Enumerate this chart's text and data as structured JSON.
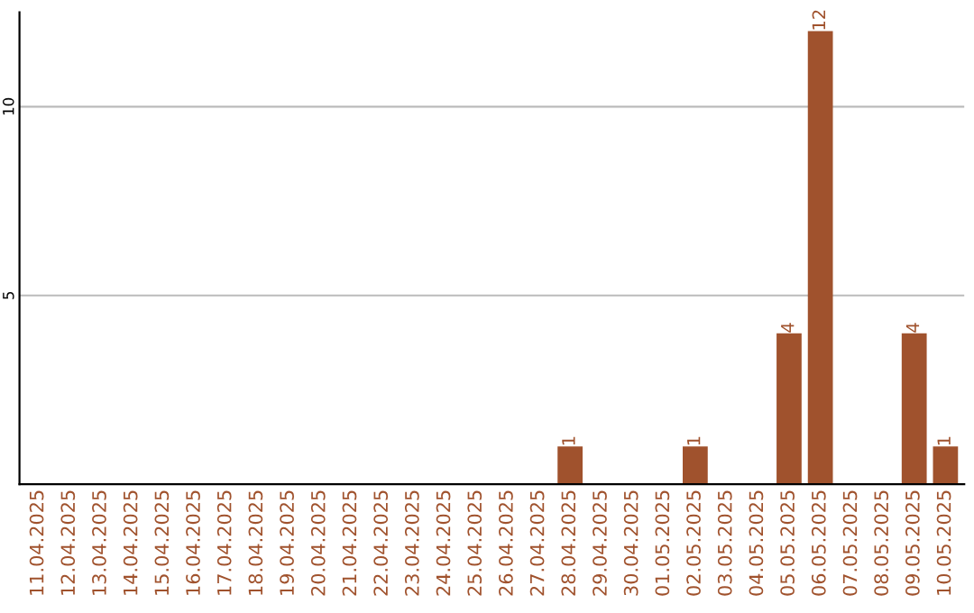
{
  "chart_data": {
    "type": "bar",
    "categories": [
      "11.04.2025",
      "12.04.2025",
      "13.04.2025",
      "14.04.2025",
      "15.04.2025",
      "16.04.2025",
      "17.04.2025",
      "18.04.2025",
      "19.04.2025",
      "20.04.2025",
      "21.04.2025",
      "22.04.2025",
      "23.04.2025",
      "24.04.2025",
      "25.04.2025",
      "26.04.2025",
      "27.04.2025",
      "28.04.2025",
      "29.04.2025",
      "30.04.2025",
      "01.05.2025",
      "02.05.2025",
      "03.05.2025",
      "04.05.2025",
      "05.05.2025",
      "06.05.2025",
      "07.05.2025",
      "08.05.2025",
      "09.05.2025",
      "10.05.2025"
    ],
    "values": [
      0,
      0,
      0,
      0,
      0,
      0,
      0,
      0,
      0,
      0,
      0,
      0,
      0,
      0,
      0,
      0,
      0,
      1,
      0,
      0,
      0,
      1,
      0,
      0,
      4,
      12,
      0,
      0,
      4,
      1
    ],
    "value_labels": [
      null,
      null,
      null,
      null,
      null,
      null,
      null,
      null,
      null,
      null,
      null,
      null,
      null,
      null,
      null,
      null,
      null,
      "1",
      null,
      null,
      null,
      "1",
      null,
      null,
      "4",
      "12",
      null,
      null,
      "4",
      "1"
    ],
    "color": "#a0522d",
    "ylim": [
      0,
      12.5
    ],
    "yticks": [
      5,
      10
    ],
    "grid": "y"
  }
}
